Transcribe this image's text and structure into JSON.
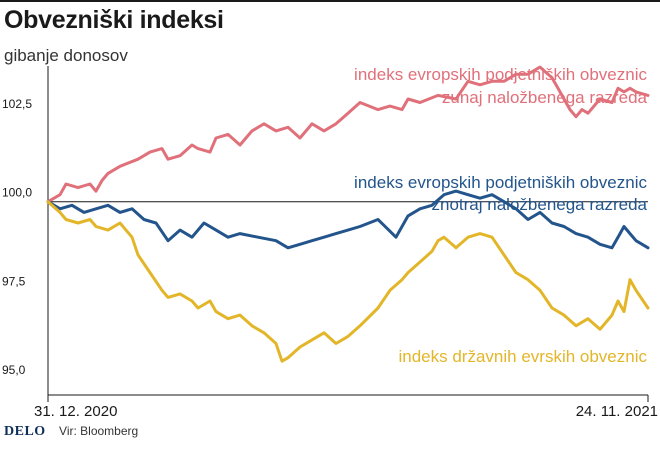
{
  "header": {
    "title": "Obvezniški indeksi",
    "subtitle": "gibanje donosov"
  },
  "footer": {
    "logo": "DELO",
    "source": "Vir: Bloomberg"
  },
  "colors": {
    "high_yield": "#e0707a",
    "investment_grade": "#23558c",
    "government": "#e3b62a"
  },
  "chart_data": {
    "type": "line",
    "title": "Obvezniški indeksi",
    "subtitle": "gibanje donosov",
    "x_start_label": "31. 12. 2020",
    "x_end_label": "24. 11. 2021",
    "x_range": [
      0,
      1
    ],
    "ylim": [
      94.8,
      104
    ],
    "yticks": [
      95.0,
      97.5,
      100.0,
      102.5
    ],
    "ytick_labels": [
      "95,0",
      "97,5",
      "100,0",
      "102,5"
    ],
    "reference_line": 100.0,
    "grid": false,
    "series": [
      {
        "id": "high_yield",
        "name_line1": "indeks evropskih podjetniških obveznic",
        "name_line2": "zunaj naložbenega razreda",
        "x": [
          0,
          0.02,
          0.03,
          0.05,
          0.07,
          0.08,
          0.09,
          0.1,
          0.12,
          0.15,
          0.17,
          0.19,
          0.2,
          0.22,
          0.24,
          0.25,
          0.27,
          0.28,
          0.3,
          0.32,
          0.34,
          0.36,
          0.38,
          0.4,
          0.42,
          0.44,
          0.46,
          0.48,
          0.5,
          0.52,
          0.55,
          0.57,
          0.59,
          0.6,
          0.62,
          0.65,
          0.68,
          0.7,
          0.72,
          0.74,
          0.76,
          0.78,
          0.8,
          0.82,
          0.84,
          0.85,
          0.86,
          0.87,
          0.88,
          0.89,
          0.9,
          0.92,
          0.94,
          0.95,
          0.96,
          0.97,
          0.98,
          1
        ],
        "values": [
          100.0,
          100.2,
          100.5,
          100.4,
          100.5,
          100.3,
          100.6,
          100.8,
          101.0,
          101.2,
          101.4,
          101.5,
          101.2,
          101.3,
          101.6,
          101.5,
          101.4,
          101.8,
          101.9,
          101.6,
          102.0,
          102.2,
          102.0,
          102.1,
          101.8,
          102.2,
          102.0,
          102.2,
          102.5,
          102.8,
          102.6,
          102.7,
          102.6,
          102.9,
          102.8,
          103.0,
          102.9,
          103.4,
          103.3,
          103.4,
          103.4,
          103.6,
          103.6,
          103.8,
          103.5,
          103.2,
          102.9,
          102.6,
          102.4,
          102.6,
          102.5,
          102.9,
          102.8,
          103.2,
          103.1,
          103.2,
          103.1,
          103.0
        ]
      },
      {
        "id": "investment_grade",
        "name_line1": "indeks evropskih podjetniških obveznic",
        "name_line2": "znotraj naložbenega razreda",
        "x": [
          0,
          0.02,
          0.04,
          0.06,
          0.08,
          0.1,
          0.12,
          0.14,
          0.16,
          0.18,
          0.2,
          0.22,
          0.24,
          0.26,
          0.28,
          0.3,
          0.32,
          0.35,
          0.38,
          0.4,
          0.42,
          0.44,
          0.46,
          0.48,
          0.5,
          0.52,
          0.55,
          0.58,
          0.6,
          0.62,
          0.64,
          0.66,
          0.68,
          0.7,
          0.72,
          0.74,
          0.76,
          0.78,
          0.8,
          0.82,
          0.84,
          0.86,
          0.88,
          0.9,
          0.92,
          0.94,
          0.95,
          0.96,
          0.97,
          0.98,
          1
        ],
        "values": [
          100.0,
          99.8,
          99.9,
          99.7,
          99.8,
          99.9,
          99.7,
          99.8,
          99.5,
          99.4,
          98.9,
          99.2,
          99.0,
          99.4,
          99.2,
          99.0,
          99.1,
          99.0,
          98.9,
          98.7,
          98.8,
          98.9,
          99.0,
          99.1,
          99.2,
          99.3,
          99.5,
          99.0,
          99.6,
          99.8,
          99.9,
          100.2,
          100.3,
          100.2,
          100.1,
          100.2,
          100.0,
          99.8,
          99.5,
          99.7,
          99.4,
          99.3,
          99.1,
          99.0,
          98.8,
          98.7,
          99.0,
          99.3,
          99.1,
          98.9,
          98.7
        ]
      },
      {
        "id": "government",
        "name_line1": "indeks državnih evrskih obveznic",
        "x": [
          0,
          0.02,
          0.03,
          0.05,
          0.07,
          0.08,
          0.1,
          0.12,
          0.14,
          0.15,
          0.17,
          0.19,
          0.2,
          0.22,
          0.24,
          0.25,
          0.27,
          0.28,
          0.3,
          0.32,
          0.34,
          0.36,
          0.38,
          0.39,
          0.4,
          0.42,
          0.44,
          0.46,
          0.48,
          0.5,
          0.52,
          0.55,
          0.57,
          0.59,
          0.6,
          0.62,
          0.64,
          0.65,
          0.66,
          0.68,
          0.7,
          0.72,
          0.74,
          0.76,
          0.78,
          0.8,
          0.82,
          0.84,
          0.86,
          0.88,
          0.9,
          0.92,
          0.94,
          0.95,
          0.96,
          0.97,
          0.98,
          1
        ],
        "values": [
          100.0,
          99.7,
          99.5,
          99.4,
          99.5,
          99.3,
          99.2,
          99.4,
          99.0,
          98.5,
          98.0,
          97.5,
          97.3,
          97.4,
          97.2,
          97.0,
          97.2,
          96.9,
          96.7,
          96.8,
          96.5,
          96.3,
          96.0,
          95.5,
          95.6,
          95.9,
          96.1,
          96.3,
          96.0,
          96.2,
          96.5,
          97.0,
          97.5,
          97.8,
          98.0,
          98.3,
          98.6,
          98.9,
          99.0,
          98.7,
          99.0,
          99.1,
          99.0,
          98.5,
          98.0,
          97.8,
          97.5,
          97.0,
          96.8,
          96.5,
          96.7,
          96.4,
          96.8,
          97.2,
          96.9,
          97.8,
          97.5,
          97.0
        ]
      }
    ]
  }
}
